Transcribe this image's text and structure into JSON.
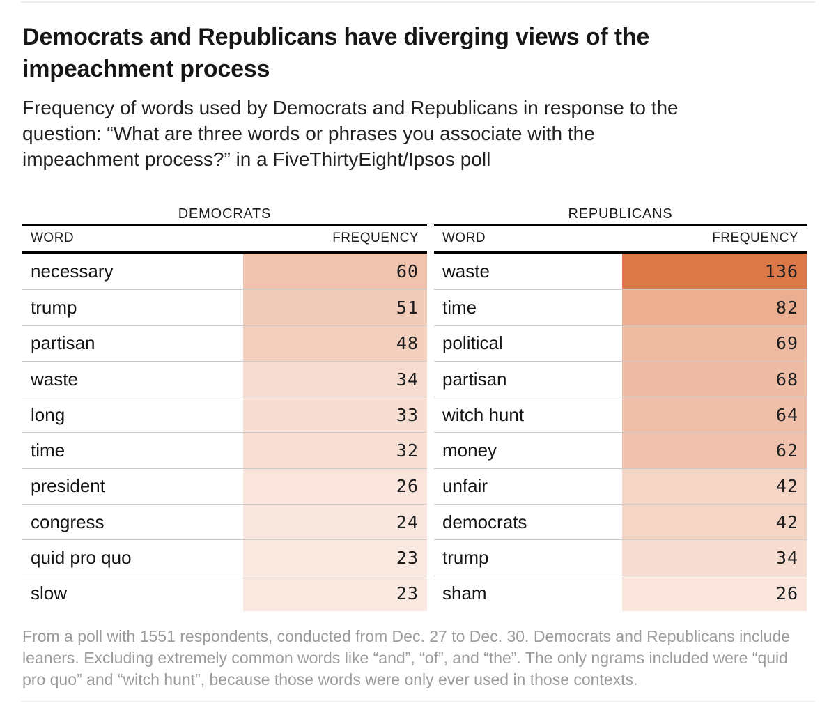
{
  "header": {
    "title_lines": [
      "Democrats and Republicans have diverging views of the",
      "impeachment process"
    ],
    "subtitle_lines": [
      "Frequency of words used by Democrats and Republicans in response to the",
      "question: “What are three words or phrases you associate with the",
      "impeachment process?” in a FiveThirtyEight/Ipsos poll"
    ]
  },
  "footer": {
    "footnote_lines": [
      "From a poll with 1551 respondents, conducted from Dec. 27 to Dec. 30. Democrats and Republicans include",
      "leaners. Excluding extremely common words like “and”, “of”, and “the”. The only ngrams included were “quid",
      "pro quo” and “witch hunt”, because those words were only ever used in those contexts."
    ]
  },
  "chart_data": {
    "type": "table",
    "title": "Democrats and Republicans have diverging views of the impeachment process",
    "subtitle": "Frequency of words used by Democrats and Republicans in response to the question: “What are three words or phrases you associate with the impeachment process?” in a FiveThirtyEight/Ipsos poll",
    "footnote": "From a poll with 1551 respondents, conducted from Dec. 27 to Dec. 30. Democrats and Republicans include leaners. Excluding extremely common words like “and”, “of”, and “the”. The only ngrams included were “quid pro quo” and “witch hunt”, because those words were only ever used in those contexts.",
    "color_scale": {
      "min_value": 0,
      "max_value": 136,
      "min_color": "#ffffff",
      "max_color": "#dd7848"
    },
    "tables": [
      {
        "group_label": "DEMOCRATS",
        "columns": [
          "WORD",
          "FREQUENCY"
        ],
        "rows": [
          {
            "word": "necessary",
            "frequency": 60
          },
          {
            "word": "trump",
            "frequency": 51
          },
          {
            "word": "partisan",
            "frequency": 48
          },
          {
            "word": "waste",
            "frequency": 34
          },
          {
            "word": "long",
            "frequency": 33
          },
          {
            "word": "time",
            "frequency": 32
          },
          {
            "word": "president",
            "frequency": 26
          },
          {
            "word": "congress",
            "frequency": 24
          },
          {
            "word": "quid pro quo",
            "frequency": 23
          },
          {
            "word": "slow",
            "frequency": 23
          }
        ]
      },
      {
        "group_label": "REPUBLICANS",
        "columns": [
          "WORD",
          "FREQUENCY"
        ],
        "rows": [
          {
            "word": "waste",
            "frequency": 136
          },
          {
            "word": "time",
            "frequency": 82
          },
          {
            "word": "political",
            "frequency": 69
          },
          {
            "word": "partisan",
            "frequency": 68
          },
          {
            "word": "witch hunt",
            "frequency": 64
          },
          {
            "word": "money",
            "frequency": 62
          },
          {
            "word": "unfair",
            "frequency": 42
          },
          {
            "word": "democrats",
            "frequency": 42
          },
          {
            "word": "trump",
            "frequency": 34
          },
          {
            "word": "sham",
            "frequency": 26
          }
        ]
      }
    ]
  }
}
